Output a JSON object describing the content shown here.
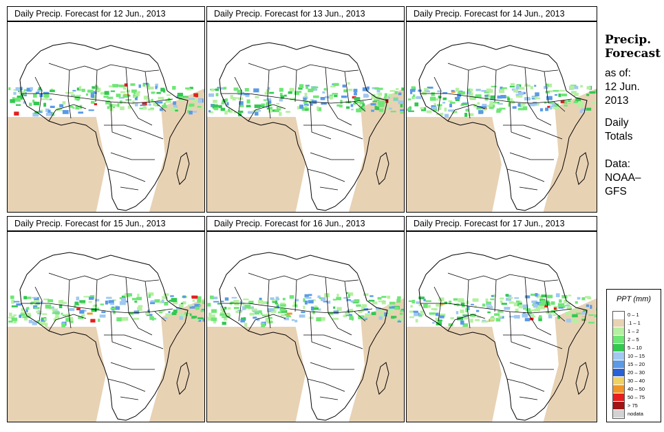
{
  "panels": [
    {
      "title": "Daily Precip. Forecast for  12 Jun., 2013",
      "variant": 0
    },
    {
      "title": "Daily Precip. Forecast for  13 Jun., 2013",
      "variant": 1
    },
    {
      "title": "Daily Precip. Forecast for  14 Jun., 2013",
      "variant": 2
    },
    {
      "title": "Daily Precip. Forecast for  15 Jun., 2013",
      "variant": 3
    },
    {
      "title": "Daily Precip. Forecast for  16 Jun., 2013",
      "variant": 4
    },
    {
      "title": "Daily Precip. Forecast for  17 Jun., 2013",
      "variant": 5
    }
  ],
  "sidebar": {
    "title_line1": "Precip.",
    "title_line2": "Forecast",
    "asof_label": "as of:",
    "date_line1": "12 Jun.",
    "date_line2": "2013",
    "totals_line1": "Daily",
    "totals_line2": "Totals",
    "data_label": "Data:",
    "source_line1": "NOAA–",
    "source_line2": "GFS"
  },
  "legend": {
    "title": "PPT (mm)",
    "items": [
      {
        "label": "0 – 1",
        "color": "#ffffff"
      },
      {
        "label": ".1 – 1",
        "color": "#e8d2b4"
      },
      {
        "label": "1 – 2",
        "color": "#b4f0a0"
      },
      {
        "label": "2 – 5",
        "color": "#6ee676"
      },
      {
        "label": "5 – 10",
        "color": "#32c850"
      },
      {
        "label": "10 – 15",
        "color": "#a0c8f0"
      },
      {
        "label": "15 – 20",
        "color": "#5a9ae6"
      },
      {
        "label": "20 – 30",
        "color": "#2860d8"
      },
      {
        "label": "30 – 40",
        "color": "#f0d264"
      },
      {
        "label": "40 – 50",
        "color": "#f09628"
      },
      {
        "label": "50 – 75",
        "color": "#e61e1e"
      },
      {
        "label": "> 75",
        "color": "#a01414"
      },
      {
        "label": "nodata",
        "color": "#d2d2d2"
      }
    ]
  },
  "colors": {
    "tan": "#e8d2b4",
    "light_green": "#b4f0a0",
    "green": "#6ee676",
    "dark_green": "#32c850",
    "light_blue": "#a0c8f0",
    "blue": "#5a9ae6",
    "dark_blue": "#2860d8",
    "orange": "#f09628",
    "red": "#e61e1e"
  }
}
